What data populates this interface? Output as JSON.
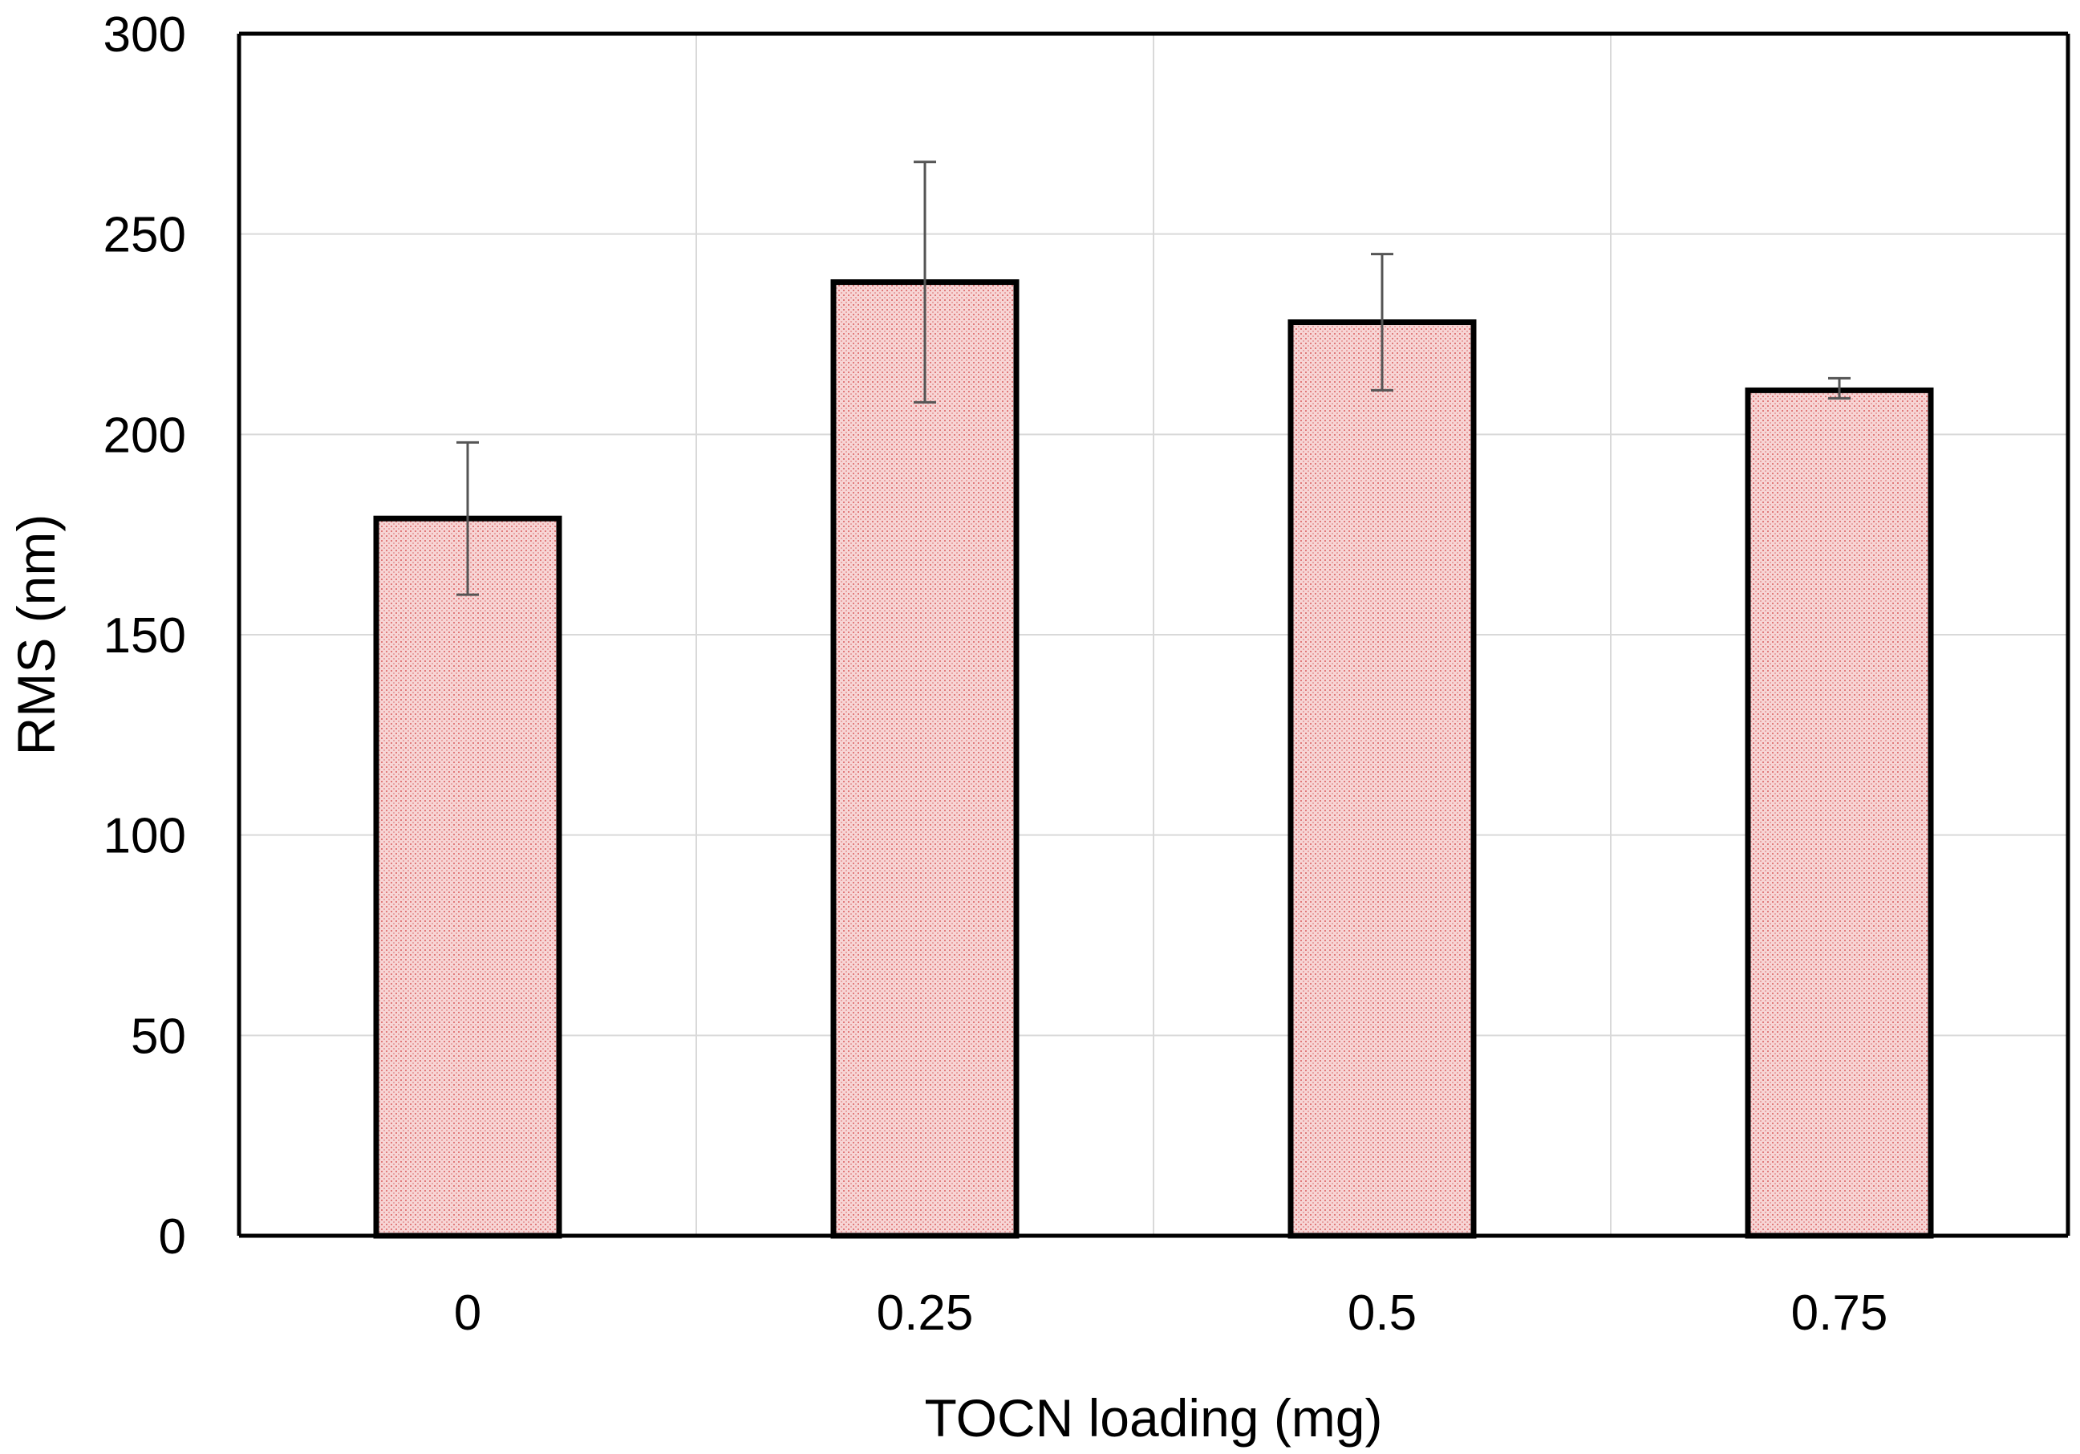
{
  "chart_data": {
    "type": "bar",
    "title": "",
    "xlabel": "TOCN loading (mg)",
    "ylabel": "RMS (nm)",
    "categories": [
      "0",
      "0.25",
      "0.5",
      "0.75"
    ],
    "values": [
      179,
      238,
      228,
      211
    ],
    "error_low": [
      160,
      208,
      211,
      209
    ],
    "error_high": [
      198,
      268,
      245,
      214
    ],
    "ylim": [
      0,
      300
    ],
    "yticks": [
      "0",
      "50",
      "100",
      "150",
      "200",
      "250",
      "300"
    ],
    "grid": true,
    "legend": "none",
    "colors": {
      "bar_fill": "#f7d5d5",
      "bar_pattern": "#e07a7a",
      "bar_stroke": "#000000",
      "gridline": "#d9d9d9",
      "errorbar": "#555555"
    }
  }
}
